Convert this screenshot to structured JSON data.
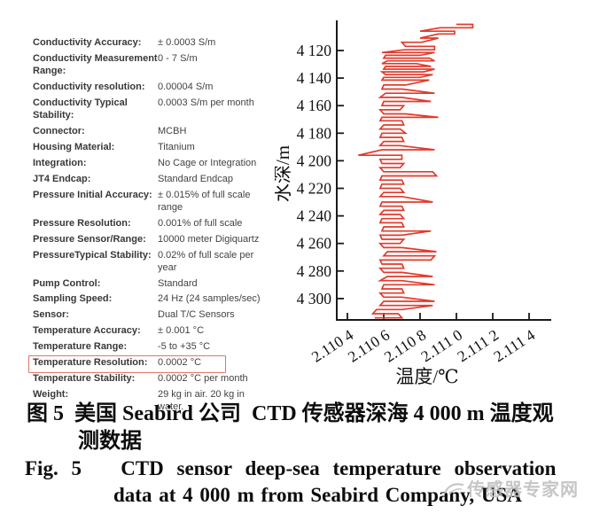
{
  "specs": {
    "highlight_color": "#e57368",
    "rows": [
      {
        "label": "Conductivity Accuracy:",
        "value": "± 0.0003 S/m",
        "highlight": false
      },
      {
        "label": "Conductivity Measurement Range:",
        "value": "0 - 7 S/m",
        "highlight": false
      },
      {
        "label": "Conductivity resolution:",
        "value": "0.00004 S/m",
        "highlight": false
      },
      {
        "label": "Conductivity Typical Stability:",
        "value": "0.0003 S/m per month",
        "highlight": false
      },
      {
        "label": "Connector:",
        "value": "MCBH",
        "highlight": false
      },
      {
        "label": "Housing Material:",
        "value": "Titanium",
        "highlight": false
      },
      {
        "label": "Integration:",
        "value": "No Cage or Integration",
        "highlight": false
      },
      {
        "label": "JT4 Endcap:",
        "value": "Standard Endcap",
        "highlight": false
      },
      {
        "label": "Pressure Initial Accuracy:",
        "value": "± 0.015% of full scale range",
        "highlight": false
      },
      {
        "label": "Pressure Resolution:",
        "value": "0.001% of full scale",
        "highlight": false
      },
      {
        "label": "Pressure Sensor/Range:",
        "value": "10000 meter Digiquartz",
        "highlight": false
      },
      {
        "label": "PressureTypical Stability:",
        "value": "0.02% of full scale per year",
        "highlight": false
      },
      {
        "label": "Pump Control:",
        "value": "Standard",
        "highlight": false
      },
      {
        "label": "Sampling Speed:",
        "value": "24 Hz (24 samples/sec)",
        "highlight": false
      },
      {
        "label": "Sensor:",
        "value": "Dual T/C Sensors",
        "highlight": false
      },
      {
        "label": "Temperature Accuracy:",
        "value": "± 0.001 °C",
        "highlight": false
      },
      {
        "label": "Temperature Range:",
        "value": "-5 to +35 °C",
        "highlight": false
      },
      {
        "label": "Temperature Resolution:",
        "value": "0.0002 °C",
        "highlight": true
      },
      {
        "label": "Temperature Stability:",
        "value": "0.0002 °C per month",
        "highlight": false
      },
      {
        "label": "Weight:",
        "value": "29 kg in air. 20 kg in water.",
        "highlight": false
      }
    ]
  },
  "chart_data": {
    "type": "line",
    "title": "",
    "xlabel": "温度/℃",
    "ylabel": "水深/m",
    "xlim": [
      2.11034,
      2.11152
    ],
    "ylim": [
      4099,
      4316
    ],
    "y_inverted": true,
    "grid": false,
    "legend": "none",
    "series_color": "#e23a2c",
    "axis_color": "#1a1a1a",
    "x_ticks": [
      {
        "v": 2.1104,
        "label": "2.110 4"
      },
      {
        "v": 2.1106,
        "label": "2.110 6"
      },
      {
        "v": 2.1108,
        "label": "2.110 8"
      },
      {
        "v": 2.111,
        "label": "2.111 0"
      },
      {
        "v": 2.1112,
        "label": "2.111 2"
      },
      {
        "v": 2.1114,
        "label": "2.111 4"
      }
    ],
    "y_ticks": [
      {
        "v": 4120,
        "label": "4 120"
      },
      {
        "v": 4140,
        "label": "4 140"
      },
      {
        "v": 4160,
        "label": "4 160"
      },
      {
        "v": 4180,
        "label": "4 180"
      },
      {
        "v": 4200,
        "label": "4 200"
      },
      {
        "v": 4220,
        "label": "4 220"
      },
      {
        "v": 4240,
        "label": "4 240"
      },
      {
        "v": 4260,
        "label": "4 260"
      },
      {
        "v": 4280,
        "label": "4 280"
      },
      {
        "v": 4300,
        "label": "4 300"
      }
    ],
    "series_note": "noisy temperature-vs-depth trace; levels are [depth_m, temp_min_C, temp_max_C]",
    "levels": [
      [
        4101,
        2.111,
        2.11109
      ],
      [
        4103.5,
        2.11091,
        2.11109
      ],
      [
        4106,
        2.1108,
        2.11099
      ],
      [
        4108,
        2.1109,
        2.11099
      ],
      [
        4111,
        2.1108,
        2.1109
      ],
      [
        4114,
        2.1107,
        2.11081
      ],
      [
        4117,
        2.11072,
        2.11088
      ],
      [
        4119.5,
        2.11071,
        2.11088
      ],
      [
        4121.5,
        2.11059,
        2.11088
      ],
      [
        4123.5,
        2.11061,
        2.1108
      ],
      [
        4125.5,
        2.1106,
        2.11085
      ],
      [
        4127.5,
        2.11062,
        2.11088
      ],
      [
        4129.5,
        2.11059,
        2.11078
      ],
      [
        4131.5,
        2.11061,
        2.11086
      ],
      [
        4133.5,
        2.1106,
        2.11088
      ],
      [
        4135.5,
        2.11059,
        2.11082
      ],
      [
        4137.5,
        2.11061,
        2.11087
      ],
      [
        4139.5,
        2.1106,
        2.1108
      ],
      [
        4141.5,
        2.11059,
        2.11085
      ],
      [
        4145,
        2.1106,
        2.11072
      ],
      [
        4148,
        2.11059,
        2.1107
      ],
      [
        4151,
        2.11061,
        2.11088
      ],
      [
        4154,
        2.11058,
        2.1107
      ],
      [
        4157,
        2.1106,
        2.11086
      ],
      [
        4160,
        2.11059,
        2.11071
      ],
      [
        4163,
        2.11058,
        2.11069
      ],
      [
        4166,
        2.1106,
        2.11072
      ],
      [
        4168.5,
        2.11059,
        2.1109
      ],
      [
        4171,
        2.11058,
        2.1107
      ],
      [
        4174,
        2.1106,
        2.11071
      ],
      [
        4177,
        2.11058,
        2.11069
      ],
      [
        4180,
        2.11059,
        2.11072
      ],
      [
        4183,
        2.11058,
        2.1107
      ],
      [
        4186,
        2.1106,
        2.11071
      ],
      [
        4189,
        2.11058,
        2.11069
      ],
      [
        4192,
        2.11059,
        2.11088
      ],
      [
        4196,
        2.11046,
        2.1107
      ],
      [
        4199,
        2.11058,
        2.1107
      ],
      [
        4202,
        2.11059,
        2.11071
      ],
      [
        4205,
        2.11058,
        2.11069
      ],
      [
        4208,
        2.1106,
        2.11087
      ],
      [
        4211,
        2.11059,
        2.11089
      ],
      [
        4214,
        2.11058,
        2.1107
      ],
      [
        4217,
        2.11059,
        2.11071
      ],
      [
        4220,
        2.11058,
        2.11069
      ],
      [
        4223,
        2.1106,
        2.11071
      ],
      [
        4226,
        2.11058,
        2.1107
      ],
      [
        4230,
        2.11059,
        2.11087
      ],
      [
        4233,
        2.11058,
        2.1107
      ],
      [
        4236,
        2.1106,
        2.11071
      ],
      [
        4239,
        2.11058,
        2.11069
      ],
      [
        4242,
        2.11059,
        2.11071
      ],
      [
        4245,
        2.11058,
        2.1107
      ],
      [
        4248,
        2.1106,
        2.11071
      ],
      [
        4251,
        2.11059,
        2.11086
      ],
      [
        4254,
        2.11058,
        2.1107
      ],
      [
        4257,
        2.11059,
        2.11071
      ],
      [
        4260,
        2.11058,
        2.11069
      ],
      [
        4263,
        2.1106,
        2.1107
      ],
      [
        4266,
        2.11062,
        2.11089
      ],
      [
        4269,
        2.1106,
        2.11088
      ],
      [
        4272,
        2.11058,
        2.11086
      ],
      [
        4275,
        2.11059,
        2.1107
      ],
      [
        4278,
        2.11058,
        2.11071
      ],
      [
        4281,
        2.1106,
        2.1107
      ],
      [
        4284,
        2.11062,
        2.11087
      ],
      [
        4287,
        2.11058,
        2.1107
      ],
      [
        4290,
        2.1106,
        2.11088
      ],
      [
        4293,
        2.11059,
        2.1107
      ],
      [
        4296,
        2.11058,
        2.11071
      ],
      [
        4299,
        2.1106,
        2.1107
      ],
      [
        4302,
        2.1106,
        2.11088
      ],
      [
        4305,
        2.11058,
        2.11087
      ],
      [
        4308,
        2.11056,
        2.1107
      ],
      [
        4311,
        2.11054,
        2.11068
      ],
      [
        4314,
        2.11055,
        2.1107
      ]
    ]
  },
  "captions": {
    "cn_line1": "图 5  美国 Seabird 公司  CTD 传感器深海 4 000 m 温度观",
    "cn_line2": "测数据",
    "en_line1": "Fig. 5   CTD sensor deep-sea temperature observation",
    "en_line2": "data at 4 000 m from Seabird Company, USA"
  },
  "watermark": {
    "text": "传感器专家网",
    "color": "#bdbdbd"
  }
}
